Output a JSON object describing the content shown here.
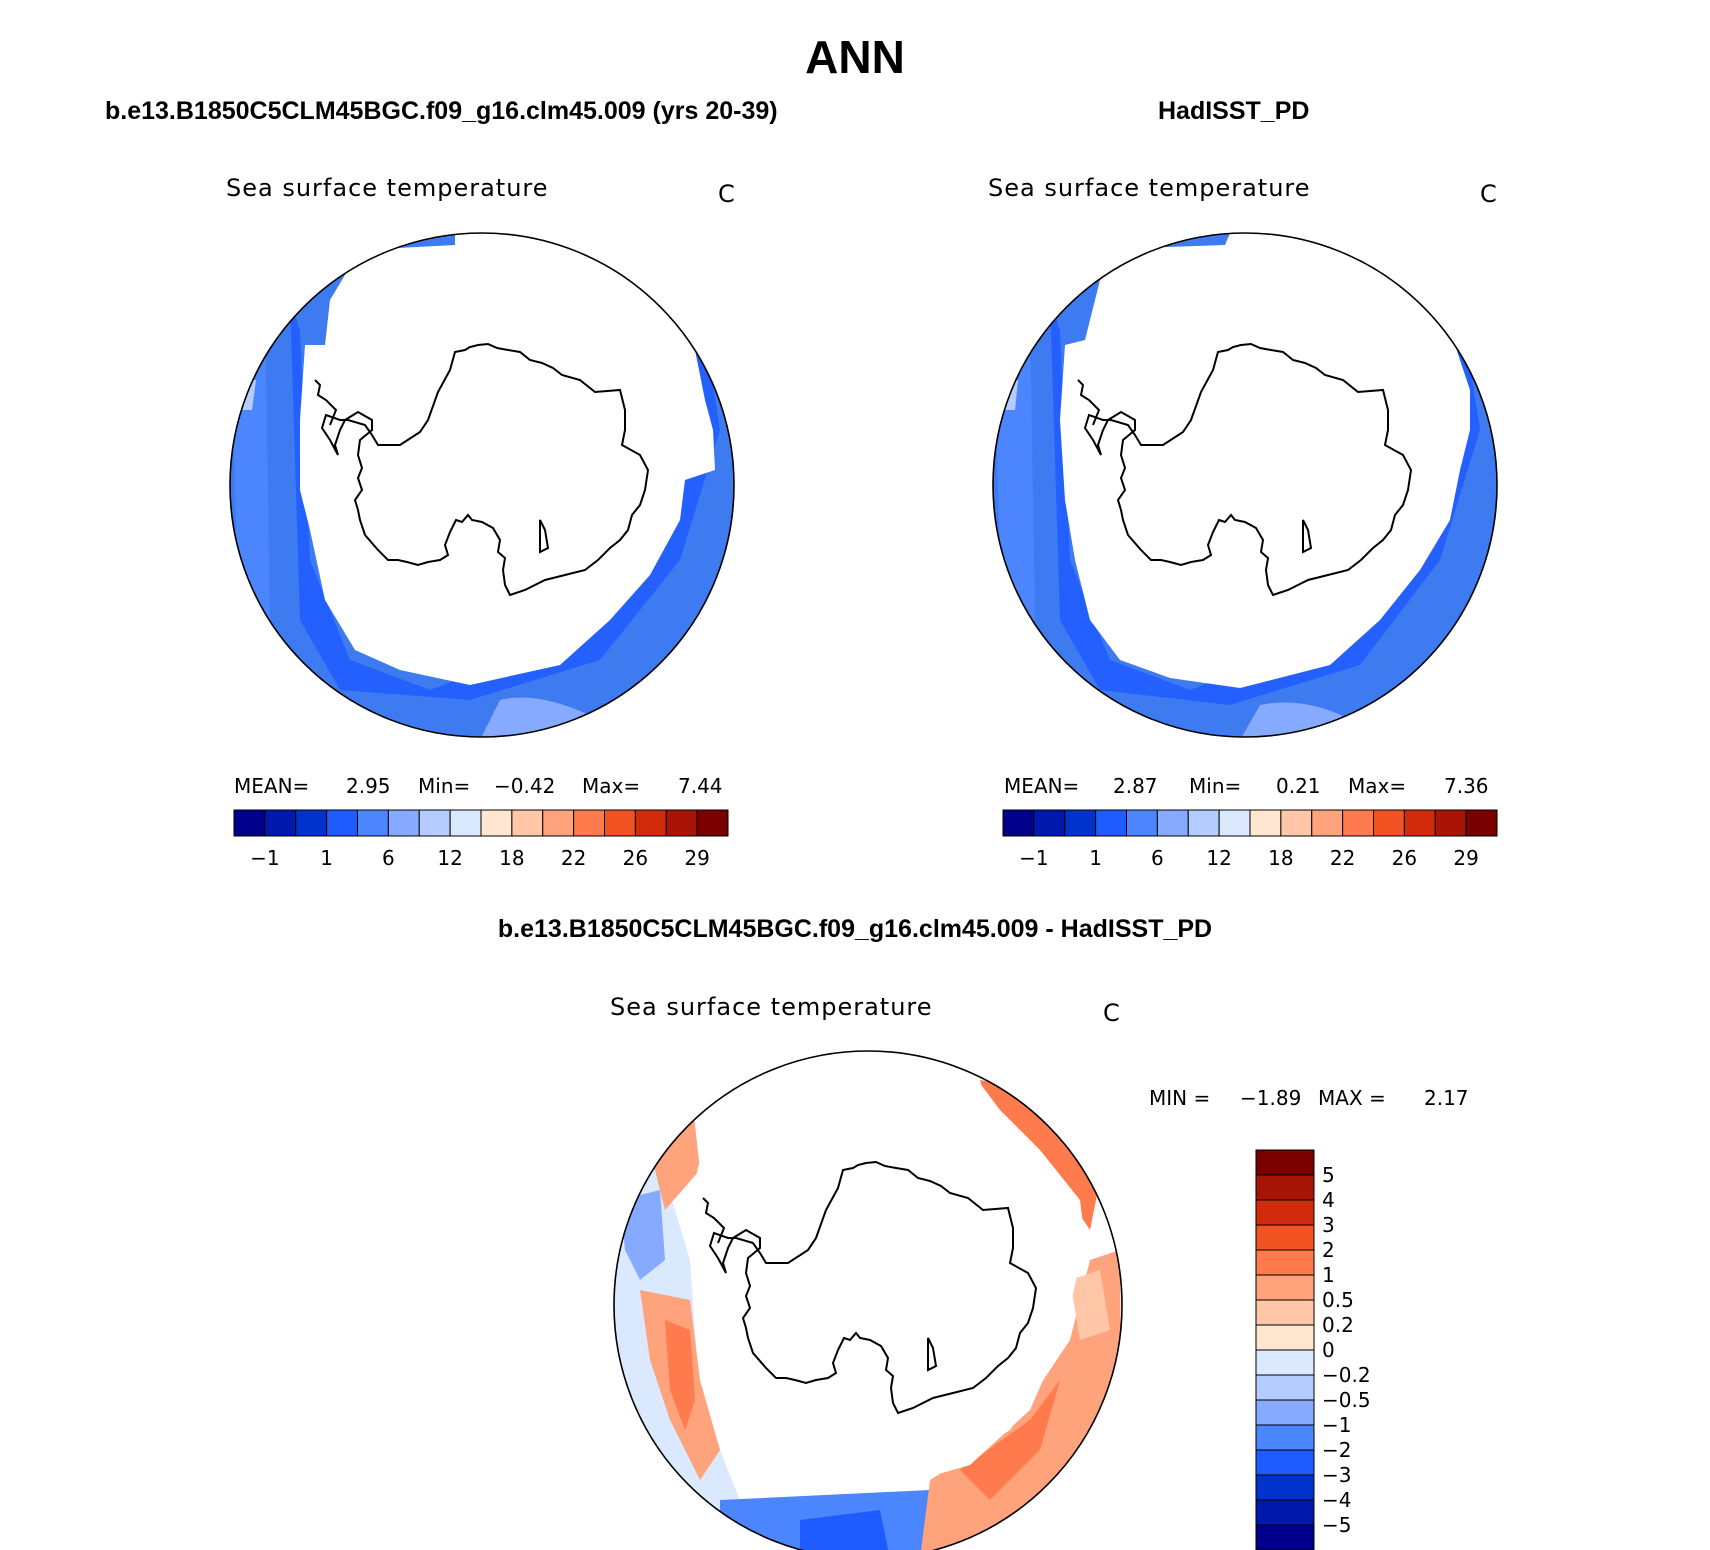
{
  "figure": {
    "title": "ANN"
  },
  "colors": {
    "abs_scale": [
      "#00008b",
      "#0019ad",
      "#0033cc",
      "#1f5cff",
      "#4c86ff",
      "#85aaff",
      "#b4ccff",
      "#dbe9ff",
      "#ffe6d0",
      "#ffc6a8",
      "#ffa37c",
      "#ff7a4c",
      "#f25322",
      "#d12b0c",
      "#a81506",
      "#7a0000"
    ],
    "diff_scale": [
      "#00008b",
      "#0019ad",
      "#0033cc",
      "#1f5cff",
      "#4c86ff",
      "#85aaff",
      "#b4ccff",
      "#dbe9ff",
      "#ffe6d0",
      "#ffc6a8",
      "#ffa37c",
      "#ff7a4c",
      "#f25322",
      "#d12b0c",
      "#a81506",
      "#7a0000"
    ],
    "land": "#ffffff",
    "outline": "#000000"
  },
  "panels": {
    "model": {
      "header": "b.e13.B1850C5CLM45BGC.f09_g16.clm45.009 (yrs 20-39)",
      "variable": "Sea surface temperature",
      "units": "C",
      "mean_label": "MEAN=",
      "mean_value": "2.95",
      "min_label": "Min=",
      "min_value": "−0.42",
      "max_label": "Max=",
      "max_value": "7.44",
      "colorbar_ticks": [
        "−1",
        "1",
        "6",
        "12",
        "18",
        "22",
        "26",
        "29"
      ]
    },
    "obs": {
      "header": "HadISST_PD",
      "variable": "Sea surface temperature",
      "units": "C",
      "mean_label": "MEAN=",
      "mean_value": "2.87",
      "min_label": "Min=",
      "min_value": "0.21",
      "max_label": "Max=",
      "max_value": "7.36",
      "colorbar_ticks": [
        "−1",
        "1",
        "6",
        "12",
        "18",
        "22",
        "26",
        "29"
      ]
    },
    "diff": {
      "header": "b.e13.B1850C5CLM45BGC.f09_g16.clm45.009 - HadISST_PD",
      "variable": "Sea surface temperature",
      "units": "C",
      "min_label": "MIN =",
      "min_value": "−1.89",
      "max_label": "MAX =",
      "max_value": "2.17",
      "colorbar_ticks": [
        "5",
        "4",
        "3",
        "2",
        "1",
        "0.5",
        "0.2",
        "0",
        "−0.2",
        "−0.5",
        "−1",
        "−2",
        "−3",
        "−4",
        "−5"
      ]
    }
  }
}
